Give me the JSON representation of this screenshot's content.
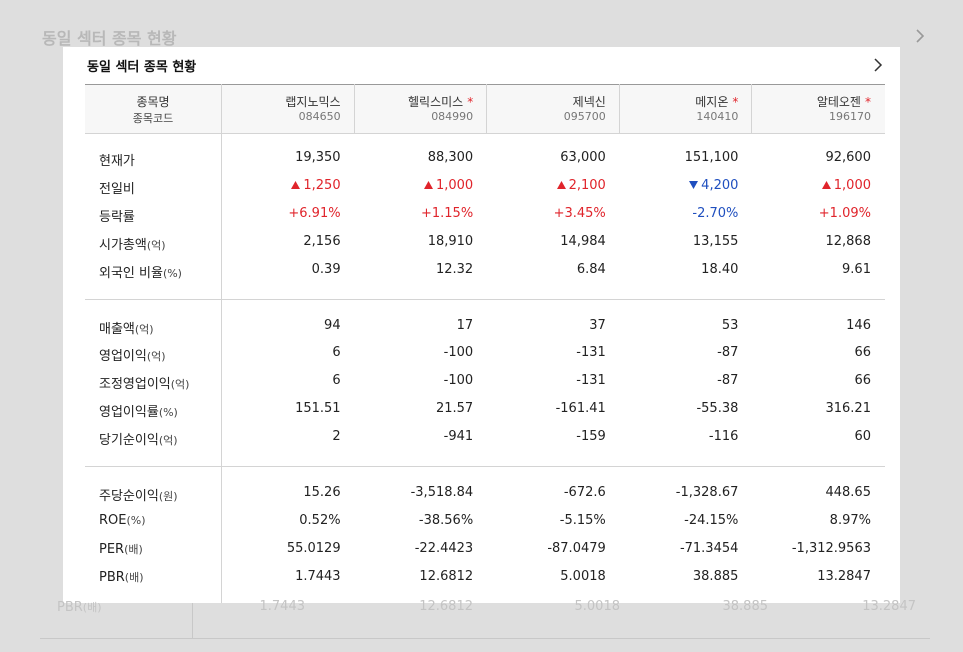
{
  "background": {
    "title": "동일 섹터 종목 현황",
    "last_row": {
      "label": "PBR",
      "unit": "(배)",
      "values": [
        "1.7443",
        "12.6812",
        "5.0018",
        "38.885",
        "13.2847"
      ]
    }
  },
  "panel": {
    "title": "동일 섹터 종목 현황",
    "header": {
      "name_label": "종목명",
      "code_label": "종목코드"
    },
    "stocks": [
      {
        "name": "랩지노믹스",
        "code": "084650"
      },
      {
        "name": "헬릭스미스",
        "code": "084990",
        "marker": "*"
      },
      {
        "name": "제넥신",
        "code": "095700"
      },
      {
        "name": "메지온",
        "code": "140410",
        "marker": "*"
      },
      {
        "name": "알테오젠",
        "code": "196170",
        "marker": "*"
      }
    ],
    "groups": [
      [
        {
          "label": "현재가",
          "values": [
            "19,350",
            "88,300",
            "63,000",
            "151,100",
            "92,600"
          ]
        },
        {
          "label": "전일비",
          "values": [
            "1,250",
            "1,000",
            "2,100",
            "4,200",
            "1,000"
          ],
          "directions": [
            "up",
            "up",
            "up",
            "down",
            "up"
          ],
          "arrows": true
        },
        {
          "label": "등락률",
          "values": [
            "+6.91%",
            "+1.15%",
            "+3.45%",
            "-2.70%",
            "+1.09%"
          ],
          "directions": [
            "up",
            "up",
            "up",
            "down",
            "up"
          ]
        },
        {
          "label": "시가총액",
          "unit": "(억)",
          "values": [
            "2,156",
            "18,910",
            "14,984",
            "13,155",
            "12,868"
          ]
        },
        {
          "label": "외국인 비율",
          "unit": "(%)",
          "values": [
            "0.39",
            "12.32",
            "6.84",
            "18.40",
            "9.61"
          ]
        }
      ],
      [
        {
          "label": "매출액",
          "unit": "(억)",
          "values": [
            "94",
            "17",
            "37",
            "53",
            "146"
          ]
        },
        {
          "label": "영업이익",
          "unit": "(억)",
          "values": [
            "6",
            "-100",
            "-131",
            "-87",
            "66"
          ]
        },
        {
          "label": "조정영업이익",
          "unit": "(억)",
          "values": [
            "6",
            "-100",
            "-131",
            "-87",
            "66"
          ]
        },
        {
          "label": "영업이익률",
          "unit": "(%)",
          "values": [
            "151.51",
            "21.57",
            "-161.41",
            "-55.38",
            "316.21"
          ]
        },
        {
          "label": "당기순이익",
          "unit": "(억)",
          "values": [
            "2",
            "-941",
            "-159",
            "-116",
            "60"
          ]
        }
      ],
      [
        {
          "label": "주당순이익",
          "unit": "(원)",
          "values": [
            "15.26",
            "-3,518.84",
            "-672.6",
            "-1,328.67",
            "448.65"
          ]
        },
        {
          "label": "ROE",
          "unit": "(%)",
          "values": [
            "0.52%",
            "-38.56%",
            "-5.15%",
            "-24.15%",
            "8.97%"
          ]
        },
        {
          "label": "PER",
          "unit": "(배)",
          "values": [
            "55.0129",
            "-22.4423",
            "-87.0479",
            "-71.3454",
            "-1,312.9563"
          ]
        },
        {
          "label": "PBR",
          "unit": "(배)",
          "values": [
            "1.7443",
            "12.6812",
            "5.0018",
            "38.885",
            "13.2847"
          ]
        }
      ]
    ]
  }
}
